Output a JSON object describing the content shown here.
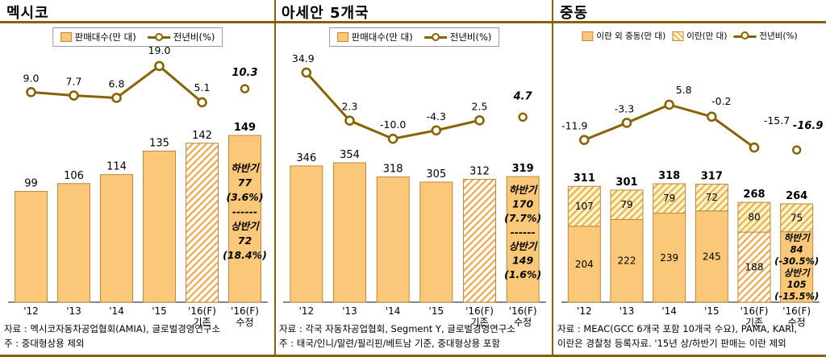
{
  "page": {
    "background": "#ffffff",
    "accent": "#876300"
  },
  "colors": {
    "bar_fill": "#FAC878",
    "bar_border": "#B98A3C",
    "hatch_stripe": "#F2A64B",
    "iran_bg": "#FDF2CC",
    "iran_stripe": "#E2B54D",
    "trend_line": "#876300",
    "axis": "#404040",
    "text": "#000000"
  },
  "chart_data": [
    {
      "type": "bar",
      "combo": "bar+line",
      "title": "멕시코",
      "legend": [
        {
          "swatch": "bar",
          "label": "판매대수(만 대)"
        },
        {
          "swatch": "line",
          "label": "전년비(%)"
        }
      ],
      "categories": [
        "'12",
        "'13",
        "'14",
        "'15",
        "'16(F)\n기존",
        "'16(F)\n수정"
      ],
      "bars": {
        "name": "판매대수(만 대)",
        "values": [
          99,
          106,
          114,
          135,
          142,
          149
        ],
        "labels": [
          "99",
          "106",
          "114",
          "135",
          "142",
          "149"
        ],
        "styles": [
          "solid",
          "solid",
          "solid",
          "solid",
          "hatch",
          "solid"
        ]
      },
      "annotation": {
        "bar_index": 5,
        "lines": [
          "하반기",
          "77",
          "(3.6%)",
          "------",
          "상반기",
          "72",
          "(18.4%)"
        ]
      },
      "line": {
        "name": "전년비(%)",
        "values": [
          9.0,
          7.7,
          6.8,
          19.0,
          5.1
        ],
        "labels": [
          "9.0",
          "7.7",
          "6.8",
          "19.0",
          "5.1"
        ],
        "isolated": {
          "value": 10.3,
          "label": "10.3"
        }
      },
      "source": "자료 : 멕시코자동차공업협회(AMIA), 글로벌경영연구소",
      "note": "주 : 중대형상용 제외"
    },
    {
      "type": "bar",
      "combo": "bar+line",
      "title": "아세안 5개국",
      "legend": [
        {
          "swatch": "bar",
          "label": "판매대수(만 대)"
        },
        {
          "swatch": "line",
          "label": "전년비(%)"
        }
      ],
      "categories": [
        "'12",
        "'13",
        "'14",
        "'15",
        "'16(F)\n기존",
        "'16(F)\n수정"
      ],
      "bars": {
        "name": "판매대수(만 대)",
        "values": [
          346,
          354,
          318,
          305,
          312,
          319
        ],
        "labels": [
          "346",
          "354",
          "318",
          "305",
          "312",
          "319"
        ],
        "styles": [
          "solid",
          "solid",
          "solid",
          "solid",
          "hatch",
          "solid"
        ]
      },
      "annotation": {
        "bar_index": 5,
        "lines": [
          "하반기",
          "170",
          "(7.7%)",
          "------",
          "상반기",
          "149",
          "(1.6%)"
        ]
      },
      "line": {
        "name": "전년비(%)",
        "values": [
          34.9,
          2.3,
          -10.0,
          -4.3,
          2.5
        ],
        "labels": [
          "34.9",
          "2.3",
          "-10.0",
          "-4.3",
          "2.5"
        ],
        "isolated": {
          "value": 4.7,
          "label": "4.7"
        }
      },
      "source": "자료 : 각국 자동차공업협회, Segment Y, 글로벌경영연구소",
      "note": "주 : 태국/인니/말련/필리핀/베트남 기준, 중대형상용 포함"
    },
    {
      "type": "bar",
      "combo": "stacked-bar+line",
      "title": "중동",
      "legend": [
        {
          "swatch": "bar",
          "label": "이란 외 중동(만 대)"
        },
        {
          "swatch": "iran",
          "label": "이란(만 대)"
        },
        {
          "swatch": "line",
          "label": "전년비(%)"
        }
      ],
      "categories": [
        "'12",
        "'13",
        "'14",
        "'15",
        "'16(F)\n기존",
        "'16(F)\n수정"
      ],
      "stacked_bars": {
        "totals": [
          311,
          301,
          318,
          317,
          268,
          264
        ],
        "total_labels": [
          "311",
          "301",
          "318",
          "317",
          "268",
          "264"
        ],
        "bottom": {
          "name": "이란 외 중동(만 대)",
          "values": [
            204,
            222,
            239,
            245,
            188,
            189
          ],
          "labels": [
            "204",
            "222",
            "239",
            "245",
            "188",
            ""
          ],
          "styles": [
            "solid",
            "solid",
            "solid",
            "solid",
            "hatch",
            "solid"
          ]
        },
        "top": {
          "name": "이란(만 대)",
          "values": [
            107,
            79,
            79,
            72,
            80,
            75
          ],
          "labels": [
            "107",
            "79",
            "79",
            "72",
            "80",
            "75"
          ]
        }
      },
      "annotation": {
        "bar_index": 5,
        "segment": "bottom",
        "lines": [
          "하반기",
          "84",
          "(-30.5%)",
          "상반기",
          "105",
          "(-15.5%)"
        ]
      },
      "line": {
        "name": "전년비(%)",
        "values": [
          -11.9,
          -3.3,
          5.8,
          -0.2,
          -15.7
        ],
        "labels": [
          "-11.9",
          "-3.3",
          "5.8",
          "-0.2",
          "-15.7"
        ],
        "isolated": {
          "value": -16.9,
          "label": "-16.9"
        }
      },
      "source": "자료 : MEAC(GCC 6개국 포함 10개국 수요), PAMA, KARI,",
      "note": "이란은 경찰청 등록자료. '15년 상/하반기 판매는 이란 제외"
    }
  ]
}
